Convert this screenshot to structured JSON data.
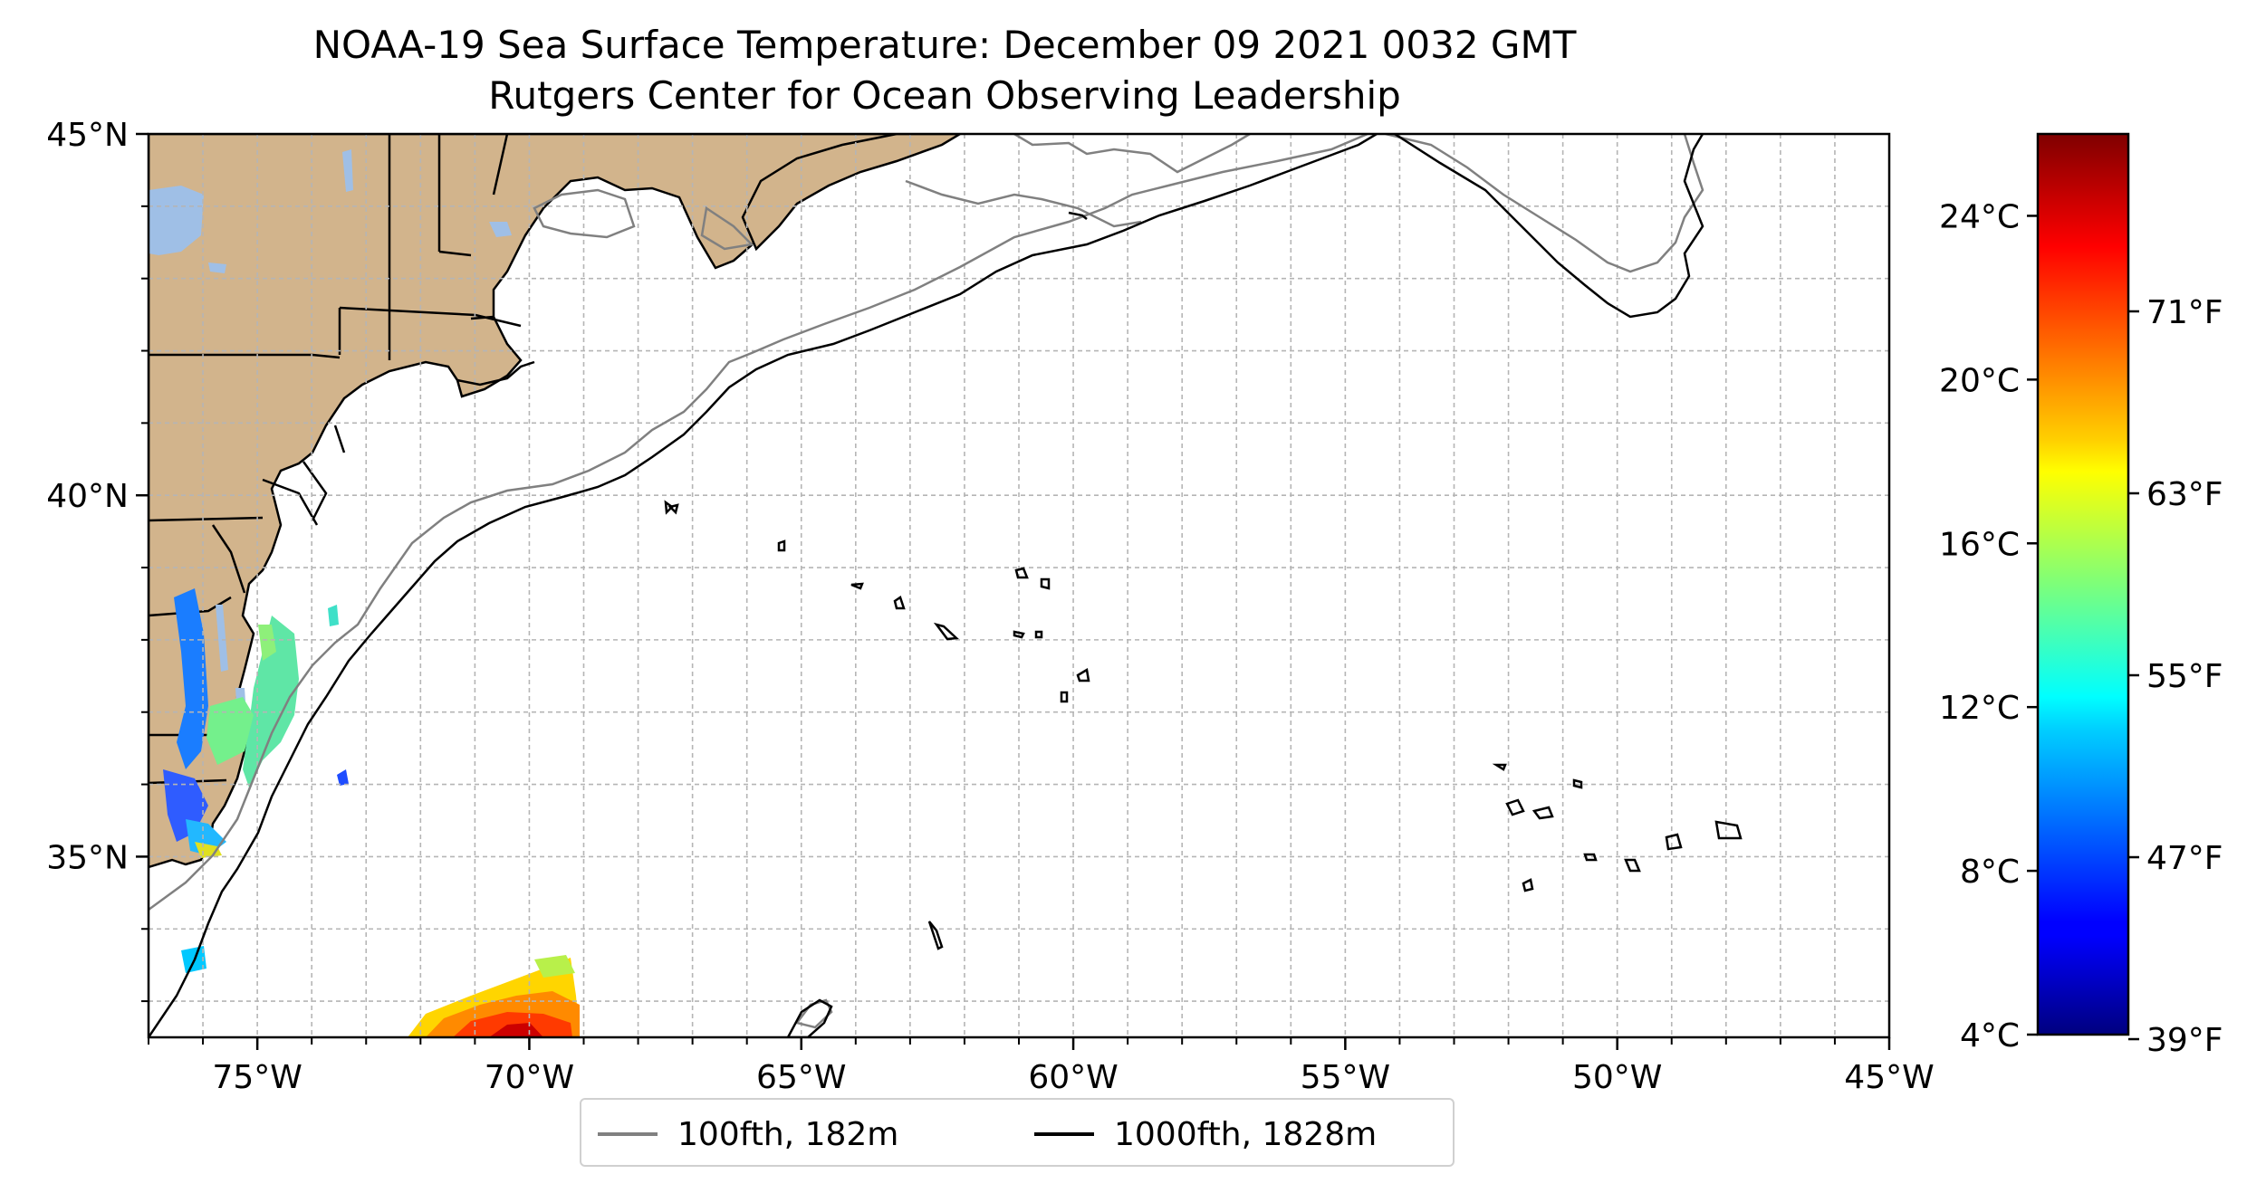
{
  "title_line1": "NOAA-19 Sea Surface Temperature: December 09 2021 0032 GMT",
  "title_line2": "Rutgers Center for Ocean Observing Leadership",
  "map": {
    "lon_range": [
      -77,
      -45
    ],
    "lat_range": [
      32.5,
      45
    ],
    "lon_ticks": [
      {
        "value": -75,
        "label": "75°W"
      },
      {
        "value": -70,
        "label": "70°W"
      },
      {
        "value": -65,
        "label": "65°W"
      },
      {
        "value": -60,
        "label": "60°W"
      },
      {
        "value": -55,
        "label": "55°W"
      },
      {
        "value": -50,
        "label": "50°W"
      },
      {
        "value": -45,
        "label": "45°W"
      }
    ],
    "lat_ticks": [
      {
        "value": 45,
        "label": "45°N"
      },
      {
        "value": 40,
        "label": "40°N"
      },
      {
        "value": 35,
        "label": "35°N"
      }
    ],
    "grid": "dashed 1° lines",
    "land_color": "#d2b48c",
    "lake_color": "#9fbfe6"
  },
  "colorbar": {
    "colormap": "jet",
    "min_c": 4,
    "max_c": 26,
    "celsius_ticks": [
      {
        "value": 24,
        "label": "24°C"
      },
      {
        "value": 20,
        "label": "20°C"
      },
      {
        "value": 16,
        "label": "16°C"
      },
      {
        "value": 12,
        "label": "12°C"
      },
      {
        "value": 8,
        "label": "8°C"
      },
      {
        "value": 4,
        "label": "4°C"
      }
    ],
    "fahrenheit_ticks": [
      {
        "value": 71,
        "label": "71°F"
      },
      {
        "value": 63,
        "label": "63°F"
      },
      {
        "value": 55,
        "label": "55°F"
      },
      {
        "value": 47,
        "label": "47°F"
      },
      {
        "value": 39,
        "label": "39°F"
      }
    ]
  },
  "legend": {
    "items": [
      {
        "label": "100fth, 182m",
        "color": "#808080"
      },
      {
        "label": "1000fth, 1828m",
        "color": "#000000"
      }
    ]
  }
}
